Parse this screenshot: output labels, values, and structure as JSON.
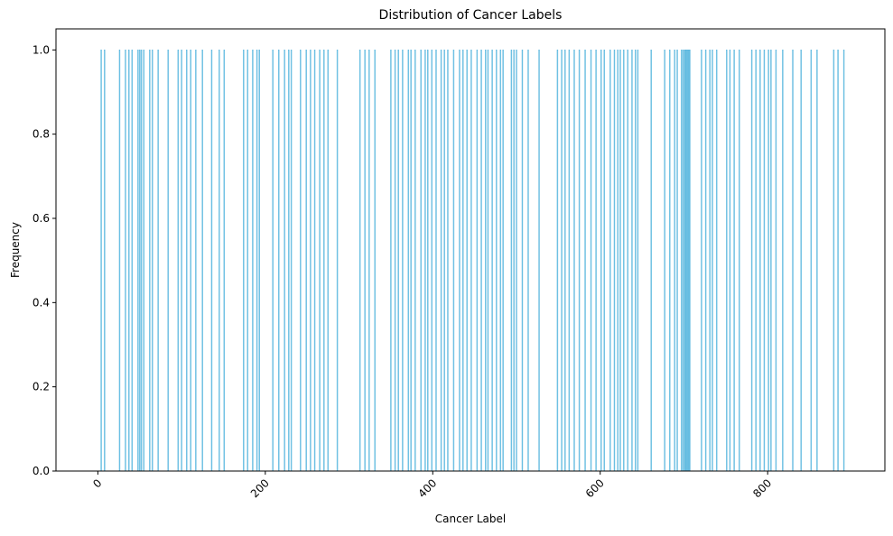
{
  "chart_data": {
    "type": "bar",
    "title": "Distribution of Cancer Labels",
    "xlabel": "Cancer Label",
    "ylabel": "Frequency",
    "xlim": [
      -50,
      940
    ],
    "ylim": [
      0,
      1.05
    ],
    "xticks": [
      0,
      200,
      400,
      600,
      800
    ],
    "xtick_labels": [
      "0",
      "200",
      "400",
      "600",
      "800"
    ],
    "yticks": [
      0.0,
      0.2,
      0.4,
      0.6,
      0.8,
      1.0
    ],
    "ytick_labels": [
      "0.0",
      "0.2",
      "0.4",
      "0.6",
      "0.8",
      "1.0"
    ],
    "grid": false,
    "legend": "none",
    "bar_width": 0.8,
    "bar_color": "#87ceeb",
    "bar_edge_color": "#2a9fd0",
    "categories": [
      4,
      8,
      26,
      33,
      37,
      41,
      48,
      50,
      52,
      55,
      62,
      65,
      72,
      84,
      96,
      100,
      106,
      111,
      117,
      125,
      136,
      145,
      151,
      174,
      179,
      185,
      190,
      193,
      209,
      216,
      223,
      228,
      231,
      242,
      249,
      254,
      259,
      265,
      270,
      275,
      286,
      313,
      319,
      324,
      331,
      350,
      355,
      359,
      364,
      371,
      374,
      379,
      386,
      391,
      394,
      399,
      404,
      410,
      414,
      418,
      425,
      432,
      436,
      441,
      446,
      453,
      458,
      463,
      466,
      471,
      476,
      481,
      484,
      494,
      497,
      500,
      507,
      514,
      527,
      549,
      554,
      558,
      563,
      569,
      575,
      582,
      589,
      595,
      601,
      605,
      612,
      617,
      621,
      624,
      628,
      633,
      638,
      642,
      645,
      661,
      677,
      683,
      689,
      692,
      697,
      699,
      701,
      702,
      703,
      704,
      705,
      706,
      707,
      721,
      726,
      731,
      734,
      739,
      751,
      755,
      760,
      766,
      781,
      786,
      791,
      796,
      801,
      804,
      810,
      818,
      830,
      840,
      852,
      859,
      879,
      884,
      891
    ],
    "values": [
      1,
      1,
      1,
      1,
      1,
      1,
      1,
      1,
      1,
      1,
      1,
      1,
      1,
      1,
      1,
      1,
      1,
      1,
      1,
      1,
      1,
      1,
      1,
      1,
      1,
      1,
      1,
      1,
      1,
      1,
      1,
      1,
      1,
      1,
      1,
      1,
      1,
      1,
      1,
      1,
      1,
      1,
      1,
      1,
      1,
      1,
      1,
      1,
      1,
      1,
      1,
      1,
      1,
      1,
      1,
      1,
      1,
      1,
      1,
      1,
      1,
      1,
      1,
      1,
      1,
      1,
      1,
      1,
      1,
      1,
      1,
      1,
      1,
      1,
      1,
      1,
      1,
      1,
      1,
      1,
      1,
      1,
      1,
      1,
      1,
      1,
      1,
      1,
      1,
      1,
      1,
      1,
      1,
      1,
      1,
      1,
      1,
      1,
      1,
      1,
      1,
      1,
      1,
      1,
      1,
      1,
      1,
      1,
      1,
      1,
      1,
      1,
      1,
      1,
      1,
      1,
      1,
      1,
      1,
      1,
      1,
      1,
      1,
      1,
      1,
      1,
      1,
      1,
      1,
      1,
      1,
      1,
      1,
      1,
      1,
      1,
      1
    ]
  }
}
